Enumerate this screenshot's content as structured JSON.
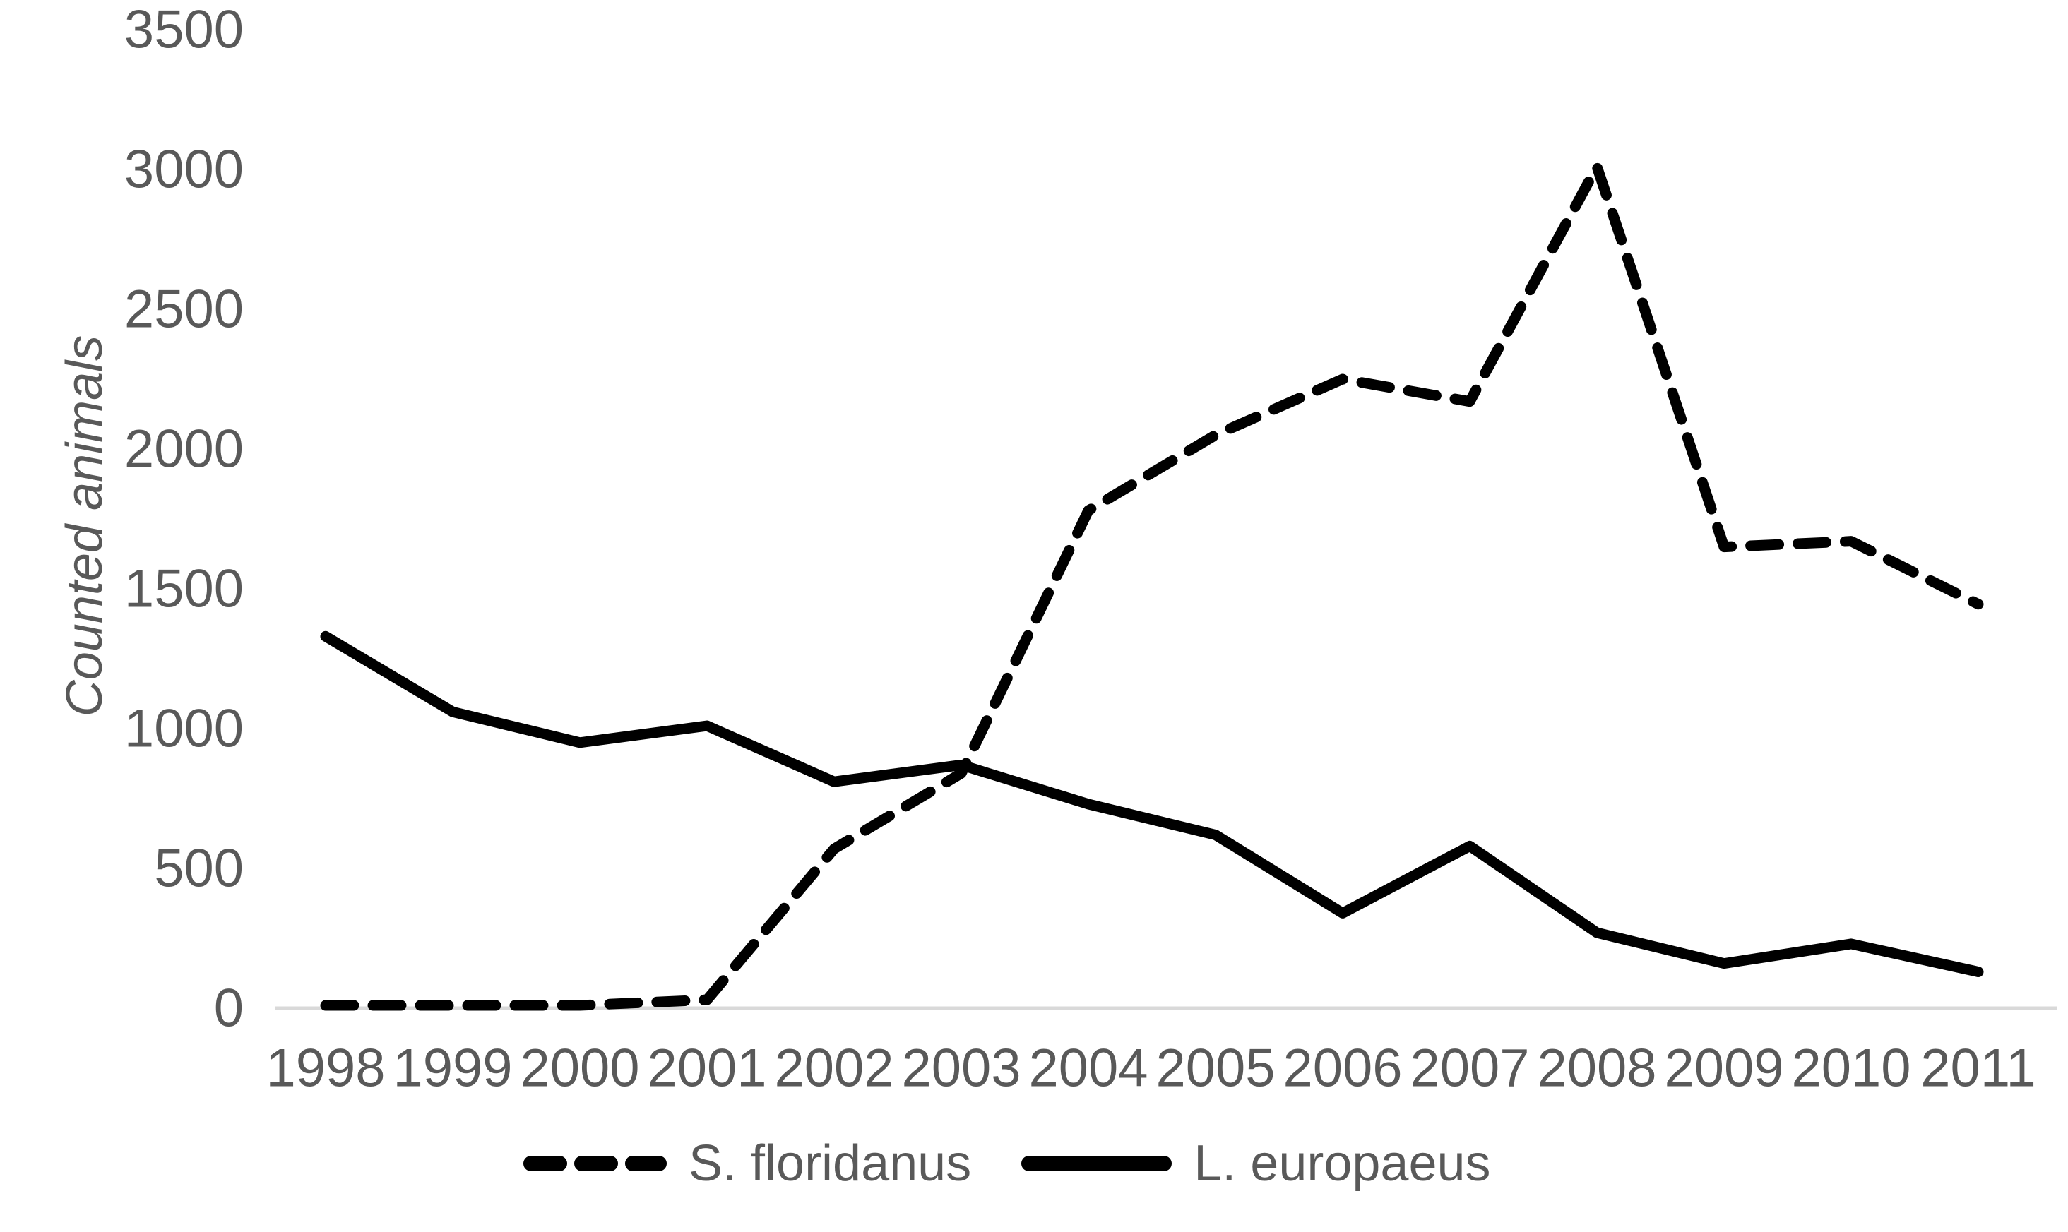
{
  "chart_data": {
    "type": "line",
    "title": "",
    "xlabel": "",
    "ylabel": "Counted animals",
    "categories": [
      "1998",
      "1999",
      "2000",
      "2001",
      "2002",
      "2003",
      "2004",
      "2005",
      "2006",
      "2007",
      "2008",
      "2009",
      "2010",
      "2011"
    ],
    "y_ticks": [
      "0",
      "500",
      "1000",
      "1500",
      "2000",
      "2500",
      "3000",
      "3500"
    ],
    "ylim": [
      0,
      3500
    ],
    "grid": false,
    "legend_position": "bottom",
    "series": [
      {
        "name": "S. floridanus",
        "line_style": "dashed",
        "color": "#000000",
        "values": [
          10,
          10,
          10,
          30,
          570,
          840,
          1780,
          2050,
          2250,
          2170,
          3010,
          1650,
          1670,
          1445
        ]
      },
      {
        "name": "L. europaeus",
        "line_style": "solid",
        "color": "#000000",
        "values": [
          1330,
          1060,
          950,
          1010,
          810,
          870,
          730,
          620,
          340,
          580,
          270,
          160,
          230,
          130
        ]
      }
    ],
    "colors": {
      "axis_line": "#d9d9d9",
      "labels": "#595959",
      "series": "#000000"
    }
  }
}
